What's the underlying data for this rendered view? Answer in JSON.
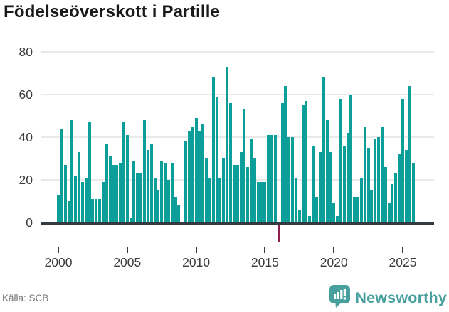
{
  "title": "Födelseöverskott i Partille",
  "source": "Källa: SCB",
  "branding": {
    "name": "Newsworthy",
    "logo_icon": "bar-chart-speech-bubble-icon"
  },
  "colors": {
    "bar_positive": "#0c9e98",
    "bar_negative": "#8e1e4e",
    "zero_axis": "#333b41",
    "gridline": "#e9e9e9",
    "tick_label": "#3c3c3c",
    "title_text": "#191919",
    "source_text": "#767676",
    "brand_teal": "#47a09e"
  },
  "chart_data": {
    "type": "bar",
    "title": "Födelseöverskott i Partille",
    "frequency": "quarterly",
    "x_tick_labels": [
      "2000",
      "2005",
      "2010",
      "2015",
      "2020",
      "2025"
    ],
    "y_ticks": [
      0,
      20,
      40,
      60,
      80
    ],
    "ylim": [
      -12,
      85
    ],
    "grid": "horizontal only",
    "legend": "none",
    "negative_highlight": "2016 Q1 shown in dark red",
    "years": [
      {
        "year": 2000,
        "quarters": [
          13,
          44,
          27,
          10
        ]
      },
      {
        "year": 2001,
        "quarters": [
          48,
          22,
          33,
          19
        ]
      },
      {
        "year": 2002,
        "quarters": [
          21,
          47,
          11,
          11
        ]
      },
      {
        "year": 2003,
        "quarters": [
          11,
          19,
          37,
          31
        ]
      },
      {
        "year": 2004,
        "quarters": [
          27,
          27,
          28,
          47
        ]
      },
      {
        "year": 2005,
        "quarters": [
          41,
          2,
          29,
          23
        ]
      },
      {
        "year": 2006,
        "quarters": [
          23,
          48,
          34,
          37
        ]
      },
      {
        "year": 2007,
        "quarters": [
          21,
          15,
          29,
          28
        ]
      },
      {
        "year": 2008,
        "quarters": [
          20,
          28,
          12,
          8
        ]
      },
      {
        "year": 2009,
        "quarters": [
          0,
          38,
          43,
          45
        ]
      },
      {
        "year": 2010,
        "quarters": [
          49,
          43,
          46,
          30
        ]
      },
      {
        "year": 2011,
        "quarters": [
          21,
          68,
          59,
          21
        ]
      },
      {
        "year": 2012,
        "quarters": [
          30,
          73,
          56,
          27
        ]
      },
      {
        "year": 2013,
        "quarters": [
          27,
          33,
          53,
          26
        ]
      },
      {
        "year": 2014,
        "quarters": [
          39,
          30,
          19,
          19
        ]
      },
      {
        "year": 2015,
        "quarters": [
          19,
          41,
          41,
          41
        ]
      },
      {
        "year": 2016,
        "quarters": [
          -9,
          56,
          64,
          40
        ]
      },
      {
        "year": 2017,
        "quarters": [
          40,
          21,
          6,
          55
        ]
      },
      {
        "year": 2018,
        "quarters": [
          57,
          3,
          36,
          12
        ]
      },
      {
        "year": 2019,
        "quarters": [
          33,
          68,
          48,
          33
        ]
      },
      {
        "year": 2020,
        "quarters": [
          9,
          3,
          58,
          36
        ]
      },
      {
        "year": 2021,
        "quarters": [
          42,
          60,
          12,
          12
        ]
      },
      {
        "year": 2022,
        "quarters": [
          21,
          45,
          35,
          15
        ]
      },
      {
        "year": 2023,
        "quarters": [
          39,
          40,
          45,
          26
        ]
      },
      {
        "year": 2024,
        "quarters": [
          9,
          18,
          23,
          32
        ]
      },
      {
        "year": 2025,
        "quarters": [
          58,
          34,
          64,
          28
        ]
      }
    ]
  }
}
